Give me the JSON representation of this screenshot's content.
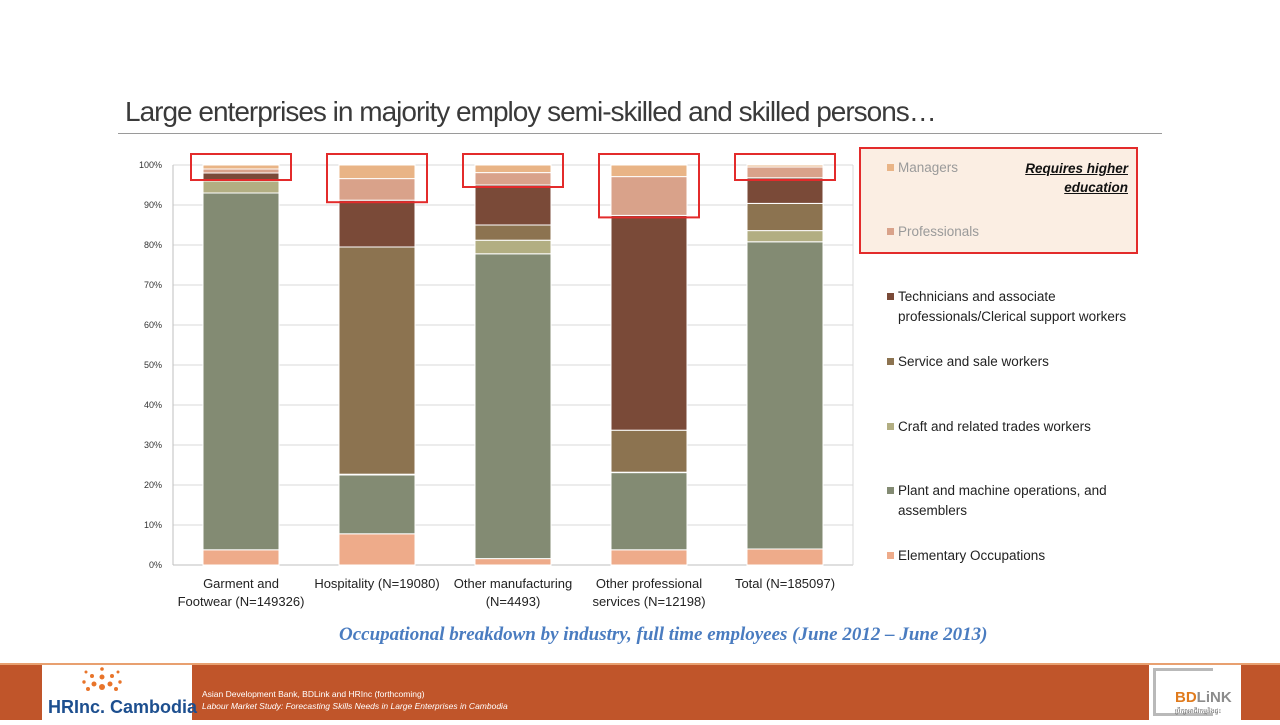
{
  "title": "Large enterprises in majority employ semi-skilled and skilled persons…",
  "caption": "Occupational  breakdown by industry, full time employees (June 2012 – June 2013)",
  "legend_note": [
    "Requires higher",
    "education"
  ],
  "footer": {
    "line1": "Asian Development Bank, BDLink and HRInc (forthcoming)",
    "line2": "Labour Market Study: Forecasting Skills Needs in Large Enterprises in Cambodia"
  },
  "logos": {
    "left": "HRInc. Cambodia",
    "right_bd": "BD",
    "right_link": "LiNK",
    "right_sub": "ប្រឹក្សាអាជីវកម្មនិងផ្ទះ"
  },
  "chart_data": {
    "type": "bar",
    "stacked": true,
    "percent": true,
    "categories": [
      [
        "Garment and",
        "Footwear (N=149326)"
      ],
      [
        "Hospitality (N=19080)"
      ],
      [
        "Other manufacturing",
        "(N=4493)"
      ],
      [
        "Other professional",
        "services (N=12198)"
      ],
      [
        "Total (N=185097)"
      ]
    ],
    "ylim": [
      0,
      100
    ],
    "yticks": [
      "0%",
      "10%",
      "20%",
      "30%",
      "40%",
      "50%",
      "60%",
      "70%",
      "80%",
      "90%",
      "100%"
    ],
    "grid": true,
    "legend_position": "right",
    "series": [
      {
        "name": "Elementary Occupations",
        "color": "#eeab8a",
        "values": [
          3.8,
          7.8,
          1.6,
          3.8,
          4.0
        ]
      },
      {
        "name": "Plant and machine operations, and assemblers",
        "color": "#838b73",
        "values": [
          89.2,
          14.7,
          76.2,
          19.3,
          76.8
        ]
      },
      {
        "name": "Craft and related trades workers",
        "color": "#b2ae82",
        "values": [
          3.0,
          0.2,
          3.4,
          0.1,
          2.8
        ]
      },
      {
        "name": "Service and sale workers",
        "color": "#8c7350",
        "values": [
          0.2,
          56.8,
          3.8,
          10.5,
          6.8
        ]
      },
      {
        "name": "Technicians and associate professionals/Clerical support workers",
        "color": "#7a4a38",
        "values": [
          1.8,
          11.7,
          10.0,
          53.7,
          6.4
        ]
      },
      {
        "name": "Professionals",
        "color": "#d9a28a",
        "values": [
          1.0,
          5.4,
          3.1,
          9.7,
          2.7
        ]
      },
      {
        "name": "Managers",
        "color": "#e9b486",
        "values": [
          1.0,
          3.4,
          1.9,
          2.9,
          0.5
        ]
      }
    ]
  }
}
